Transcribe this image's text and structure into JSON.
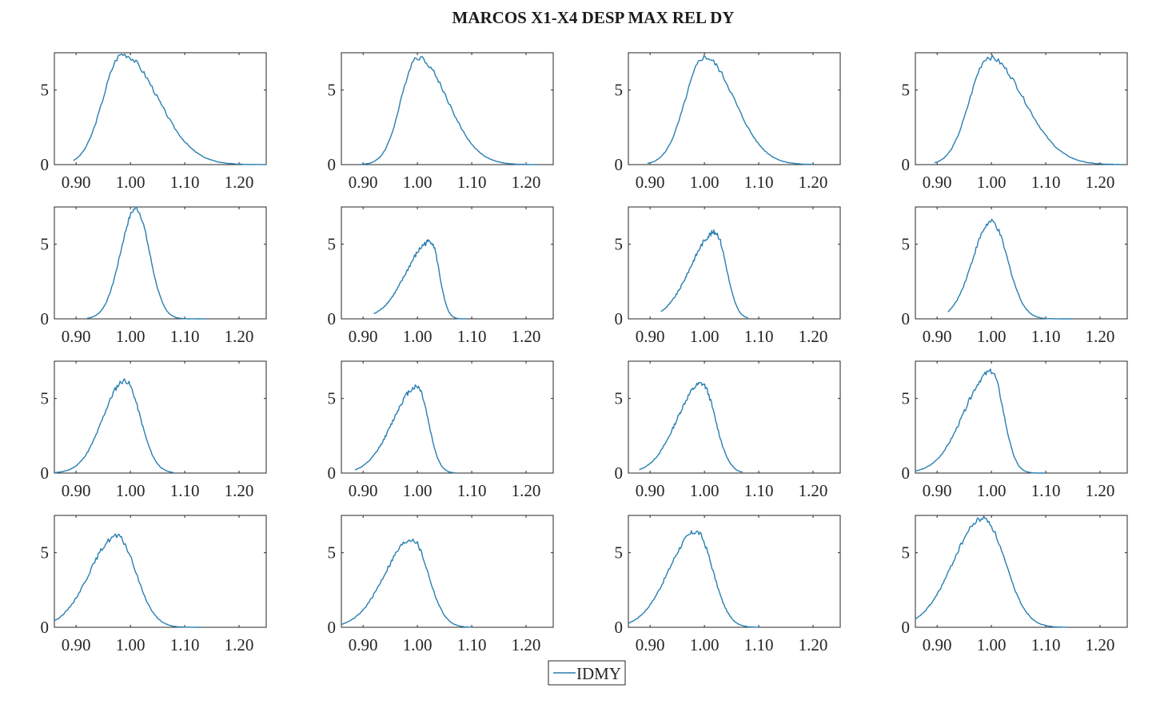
{
  "chart_data": {
    "type": "line",
    "title": "MARCOS X1-X4 DESP MAX REL DY",
    "xlabel": "",
    "ylabel": "",
    "xlim": [
      0.86,
      1.25
    ],
    "ylim": [
      0,
      7.5
    ],
    "xticks": [
      0.9,
      1.0,
      1.1,
      1.2
    ],
    "xtick_labels": [
      "0.90",
      "1.00",
      "1.10",
      "1.20"
    ],
    "yticks": [
      0,
      5
    ],
    "ytick_labels": [
      "0",
      "5"
    ],
    "grid": false,
    "layout": "4x4",
    "legend": {
      "position": "bottom-center",
      "entries": [
        "IDMY"
      ]
    },
    "series_color": "#2a7fb0",
    "panels": [
      {
        "series": "IDMY",
        "peak_x": 0.985,
        "peak_y": 7.4,
        "sd_left": 0.035,
        "sd_right": 0.065,
        "x_start": 0.895,
        "x_end": 1.25
      },
      {
        "series": "IDMY",
        "peak_x": 1.0,
        "peak_y": 7.2,
        "sd_left": 0.03,
        "sd_right": 0.055,
        "x_start": 0.895,
        "x_end": 1.22
      },
      {
        "series": "IDMY",
        "peak_x": 1.0,
        "peak_y": 7.2,
        "sd_left": 0.035,
        "sd_right": 0.055,
        "x_start": 0.895,
        "x_end": 1.2
      },
      {
        "series": "IDMY",
        "peak_x": 0.995,
        "peak_y": 7.2,
        "sd_left": 0.035,
        "sd_right": 0.065,
        "x_start": 0.895,
        "x_end": 1.24
      },
      {
        "series": "IDMY",
        "peak_x": 1.01,
        "peak_y": 7.4,
        "sd_left": 0.028,
        "sd_right": 0.025,
        "x_start": 0.92,
        "x_end": 1.14
      },
      {
        "series": "IDMY",
        "peak_x": 1.025,
        "peak_y": 5.2,
        "sd_left": 0.045,
        "sd_right": 0.015,
        "x_start": 0.92,
        "x_end": 1.09
      },
      {
        "series": "IDMY",
        "peak_x": 1.02,
        "peak_y": 5.8,
        "sd_left": 0.045,
        "sd_right": 0.02,
        "x_start": 0.92,
        "x_end": 1.08
      },
      {
        "series": "IDMY",
        "peak_x": 1.0,
        "peak_y": 6.5,
        "sd_left": 0.035,
        "sd_right": 0.03,
        "x_start": 0.92,
        "x_end": 1.15
      },
      {
        "series": "IDMY",
        "peak_x": 0.99,
        "peak_y": 6.2,
        "sd_left": 0.04,
        "sd_right": 0.028,
        "x_start": 0.86,
        "x_end": 1.08
      },
      {
        "series": "IDMY",
        "peak_x": 1.0,
        "peak_y": 5.8,
        "sd_left": 0.045,
        "sd_right": 0.02,
        "x_start": 0.885,
        "x_end": 1.07
      },
      {
        "series": "IDMY",
        "peak_x": 0.995,
        "peak_y": 6.0,
        "sd_left": 0.045,
        "sd_right": 0.025,
        "x_start": 0.88,
        "x_end": 1.07
      },
      {
        "series": "IDMY",
        "peak_x": 1.0,
        "peak_y": 6.8,
        "sd_left": 0.05,
        "sd_right": 0.022,
        "x_start": 0.86,
        "x_end": 1.1
      },
      {
        "series": "IDMY",
        "peak_x": 0.975,
        "peak_y": 6.1,
        "sd_left": 0.05,
        "sd_right": 0.035,
        "x_start": 0.86,
        "x_end": 1.13
      },
      {
        "series": "IDMY",
        "peak_x": 0.99,
        "peak_y": 5.9,
        "sd_left": 0.05,
        "sd_right": 0.03,
        "x_start": 0.86,
        "x_end": 1.1
      },
      {
        "series": "IDMY",
        "peak_x": 0.985,
        "peak_y": 6.4,
        "sd_left": 0.05,
        "sd_right": 0.03,
        "x_start": 0.86,
        "x_end": 1.1
      },
      {
        "series": "IDMY",
        "peak_x": 0.985,
        "peak_y": 7.3,
        "sd_left": 0.055,
        "sd_right": 0.04,
        "x_start": 0.86,
        "x_end": 1.14
      }
    ]
  }
}
